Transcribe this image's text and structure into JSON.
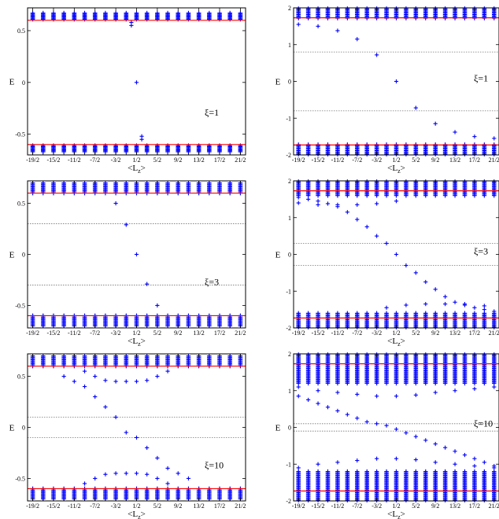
{
  "axis_text": {
    "xlabel": "<L",
    "xlabel_sub": "z",
    "xlabel_close": ">",
    "ylabel": "E"
  },
  "chart_data": [
    {
      "type": "scatter",
      "panel": "left-top",
      "xi_label": "ξ",
      "xi_value": "=1",
      "x_ticks": [
        "-19/2",
        "-15/2",
        "-11/2",
        "-7/2",
        "-3/2",
        "1/2",
        "5/2",
        "9/2",
        "13/2",
        "17/2",
        "21/2"
      ],
      "y_ticks": [
        "0.5",
        "0",
        "-0.5"
      ],
      "ylim": [
        -0.7,
        0.72
      ],
      "red_lines": [
        0.6,
        -0.6
      ],
      "gap_lines": [],
      "upper_band": [
        0.61,
        0.67
      ],
      "lower_band": [
        -0.67,
        -0.61
      ],
      "inner": [
        [
          0.5,
          0.0
        ],
        [
          0.0,
          0.58
        ],
        [
          0.0,
          0.55
        ],
        [
          1.0,
          -0.52
        ],
        [
          1.0,
          -0.55
        ]
      ],
      "xlim": [
        -10,
        11
      ]
    },
    {
      "type": "scatter",
      "panel": "right-top",
      "xi_label": "ξ",
      "xi_value": "=1",
      "x_ticks": [
        "-19/2",
        "-15/2",
        "-11/2",
        "-7/2",
        "-3/2",
        "1/2",
        "5/2",
        "9/2",
        "13/2",
        "17/2",
        "21/2"
      ],
      "y_ticks": [
        "2",
        "1",
        "0",
        "-1",
        "-2"
      ],
      "ylim": [
        -2.0,
        2.0
      ],
      "red_lines": [
        1.73,
        -1.73
      ],
      "gap_lines": [
        0.8,
        -0.8
      ],
      "upper_band": [
        1.72,
        1.98
      ],
      "lower_band": [
        -1.98,
        -1.72
      ],
      "inner": [
        [
          -9.5,
          1.55
        ],
        [
          -7.5,
          1.5
        ],
        [
          -5.5,
          1.38
        ],
        [
          -3.5,
          1.15
        ],
        [
          -1.5,
          0.72
        ],
        [
          0.5,
          0.0
        ],
        [
          2.5,
          -0.72
        ],
        [
          4.5,
          -1.15
        ],
        [
          6.5,
          -1.38
        ],
        [
          8.5,
          -1.5
        ],
        [
          10.5,
          -1.55
        ]
      ],
      "xlim": [
        -10,
        11
      ]
    },
    {
      "type": "scatter",
      "panel": "left-middle",
      "xi_label": "ξ",
      "xi_value": "=3",
      "x_ticks": [
        "-19/2",
        "-15/2",
        "-11/2",
        "-7/2",
        "-3/2",
        "1/2",
        "5/2",
        "9/2",
        "13/2",
        "17/2",
        "21/2"
      ],
      "y_ticks": [
        "0.5",
        "0",
        "-0.5"
      ],
      "ylim": [
        -0.72,
        0.72
      ],
      "red_lines": [
        0.6,
        -0.6
      ],
      "gap_lines": [
        0.3,
        -0.3
      ],
      "upper_band": [
        0.6,
        0.7
      ],
      "lower_band": [
        -0.7,
        -0.6
      ],
      "inner": [
        [
          -1.5,
          0.5
        ],
        [
          -0.5,
          0.29
        ],
        [
          0.5,
          0.0
        ],
        [
          1.5,
          -0.29
        ],
        [
          2.5,
          -0.5
        ]
      ],
      "xlim": [
        -10,
        11
      ]
    },
    {
      "type": "scatter",
      "panel": "right-middle",
      "xi_label": "ξ",
      "xi_value": "=3",
      "x_ticks": [
        "-19/2",
        "-15/2",
        "-11/2",
        "-7/2",
        "-3/2",
        "1/2",
        "5/2",
        "9/2",
        "13/2",
        "17/2",
        "21/2"
      ],
      "y_ticks": [
        "2",
        "1",
        "0",
        "-1",
        "-2"
      ],
      "ylim": [
        -2.0,
        2.0
      ],
      "red_lines": [
        1.73,
        -1.73
      ],
      "gap_lines": [
        0.3,
        -0.3
      ],
      "upper_band": [
        1.6,
        1.98
      ],
      "lower_band": [
        -1.98,
        -1.6
      ],
      "inner": [
        [
          -9.5,
          1.55
        ],
        [
          -8.5,
          1.5
        ],
        [
          -7.5,
          1.45
        ],
        [
          -6.5,
          1.38
        ],
        [
          -5.5,
          1.3
        ],
        [
          -4.5,
          1.15
        ],
        [
          -3.5,
          0.95
        ],
        [
          -2.5,
          0.75
        ],
        [
          -1.5,
          0.5
        ],
        [
          -0.5,
          0.3
        ],
        [
          0.5,
          0.0
        ],
        [
          1.5,
          -0.3
        ],
        [
          2.5,
          -0.5
        ],
        [
          3.5,
          -0.75
        ],
        [
          4.5,
          -0.95
        ],
        [
          5.5,
          -1.15
        ],
        [
          6.5,
          -1.3
        ],
        [
          7.5,
          -1.38
        ],
        [
          8.5,
          -1.45
        ],
        [
          9.5,
          -1.5
        ],
        [
          10.5,
          -1.55
        ],
        [
          -9.5,
          1.4
        ],
        [
          -7.5,
          1.35
        ],
        [
          -5.5,
          1.35
        ],
        [
          -3.5,
          1.35
        ],
        [
          -1.5,
          1.38
        ],
        [
          0.5,
          1.45
        ],
        [
          -0.5,
          -1.45
        ],
        [
          1.5,
          -1.38
        ],
        [
          3.5,
          -1.35
        ],
        [
          5.5,
          -1.35
        ],
        [
          7.5,
          -1.35
        ],
        [
          9.5,
          -1.4
        ]
      ],
      "xlim": [
        -10,
        11
      ]
    },
    {
      "type": "scatter",
      "panel": "left-bottom",
      "xi_label": "ξ",
      "xi_value": "=10",
      "x_ticks": [
        "-19/2",
        "-15/2",
        "-11/2",
        "-7/2",
        "-3/2",
        "1/2",
        "5/2",
        "9/2",
        "13/2",
        "17/2",
        "21/2"
      ],
      "y_ticks": [
        "0.5",
        "0",
        "-0.5"
      ],
      "ylim": [
        -0.72,
        0.72
      ],
      "red_lines": [
        0.6,
        -0.6
      ],
      "gap_lines": [
        0.1,
        -0.1
      ],
      "upper_band": [
        0.6,
        0.7
      ],
      "lower_band": [
        -0.7,
        -0.6
      ],
      "inner": [
        [
          -6.5,
          0.5
        ],
        [
          -5.5,
          0.45
        ],
        [
          -4.5,
          0.4
        ],
        [
          -3.5,
          0.3
        ],
        [
          -2.5,
          0.2
        ],
        [
          -1.5,
          0.1
        ],
        [
          -0.5,
          -0.05
        ],
        [
          0.5,
          -0.1
        ],
        [
          1.5,
          -0.2
        ],
        [
          2.5,
          -0.3
        ],
        [
          3.5,
          -0.4
        ],
        [
          4.5,
          -0.45
        ],
        [
          5.5,
          -0.5
        ],
        [
          -4.5,
          0.55
        ],
        [
          -3.5,
          0.5
        ],
        [
          -2.5,
          0.46
        ],
        [
          -1.5,
          0.45
        ],
        [
          -0.5,
          0.45
        ],
        [
          0.5,
          0.45
        ],
        [
          1.5,
          0.46
        ],
        [
          2.5,
          0.5
        ],
        [
          3.5,
          0.55
        ],
        [
          -4.5,
          -0.55
        ],
        [
          -3.5,
          -0.5
        ],
        [
          -2.5,
          -0.46
        ],
        [
          -1.5,
          -0.45
        ],
        [
          -0.5,
          -0.45
        ],
        [
          0.5,
          -0.45
        ],
        [
          1.5,
          -0.46
        ],
        [
          2.5,
          -0.5
        ],
        [
          3.5,
          -0.55
        ]
      ],
      "xlim": [
        -10,
        11
      ]
    },
    {
      "type": "scatter",
      "panel": "right-bottom",
      "xi_label": "ξ",
      "xi_value": "=10",
      "x_ticks": [
        "-19/2",
        "-15/2",
        "-11/2",
        "-7/2",
        "-3/2",
        "1/2",
        "5/2",
        "9/2",
        "13/2",
        "17/2",
        "21/2"
      ],
      "y_ticks": [
        "2",
        "1",
        "0",
        "-1",
        "-2"
      ],
      "ylim": [
        -2.0,
        2.0
      ],
      "red_lines": [
        1.73,
        -1.73
      ],
      "gap_lines": [
        0.1,
        -0.1
      ],
      "upper_band": [
        1.2,
        1.98
      ],
      "lower_band": [
        -1.98,
        -1.2
      ],
      "inner": [
        [
          -9.5,
          0.85
        ],
        [
          -8.5,
          0.75
        ],
        [
          -7.5,
          0.65
        ],
        [
          -6.5,
          0.55
        ],
        [
          -5.5,
          0.45
        ],
        [
          -4.5,
          0.35
        ],
        [
          -3.5,
          0.25
        ],
        [
          -2.5,
          0.15
        ],
        [
          -1.5,
          0.1
        ],
        [
          -0.5,
          0.05
        ],
        [
          0.5,
          -0.05
        ],
        [
          1.5,
          -0.15
        ],
        [
          2.5,
          -0.25
        ],
        [
          3.5,
          -0.35
        ],
        [
          4.5,
          -0.45
        ],
        [
          5.5,
          -0.55
        ],
        [
          6.5,
          -0.65
        ],
        [
          7.5,
          -0.75
        ],
        [
          8.5,
          -0.85
        ],
        [
          9.5,
          -0.95
        ],
        [
          10.5,
          -1.05
        ],
        [
          -9.5,
          1.1
        ],
        [
          -7.5,
          1.0
        ],
        [
          -5.5,
          0.95
        ],
        [
          -3.5,
          0.9
        ],
        [
          -1.5,
          0.85
        ],
        [
          0.5,
          0.85
        ],
        [
          2.5,
          0.88
        ],
        [
          4.5,
          0.95
        ],
        [
          6.5,
          1.0
        ],
        [
          8.5,
          1.05
        ],
        [
          10.5,
          1.1
        ],
        [
          -9.5,
          -1.1
        ],
        [
          -7.5,
          -1.0
        ],
        [
          -5.5,
          -0.95
        ],
        [
          -3.5,
          -0.9
        ],
        [
          -1.5,
          -0.85
        ],
        [
          0.5,
          -0.85
        ],
        [
          2.5,
          -0.88
        ],
        [
          4.5,
          -0.95
        ],
        [
          6.5,
          -1.0
        ],
        [
          8.5,
          -1.05
        ],
        [
          10.5,
          -1.1
        ]
      ],
      "xlim": [
        -10,
        11
      ]
    }
  ]
}
